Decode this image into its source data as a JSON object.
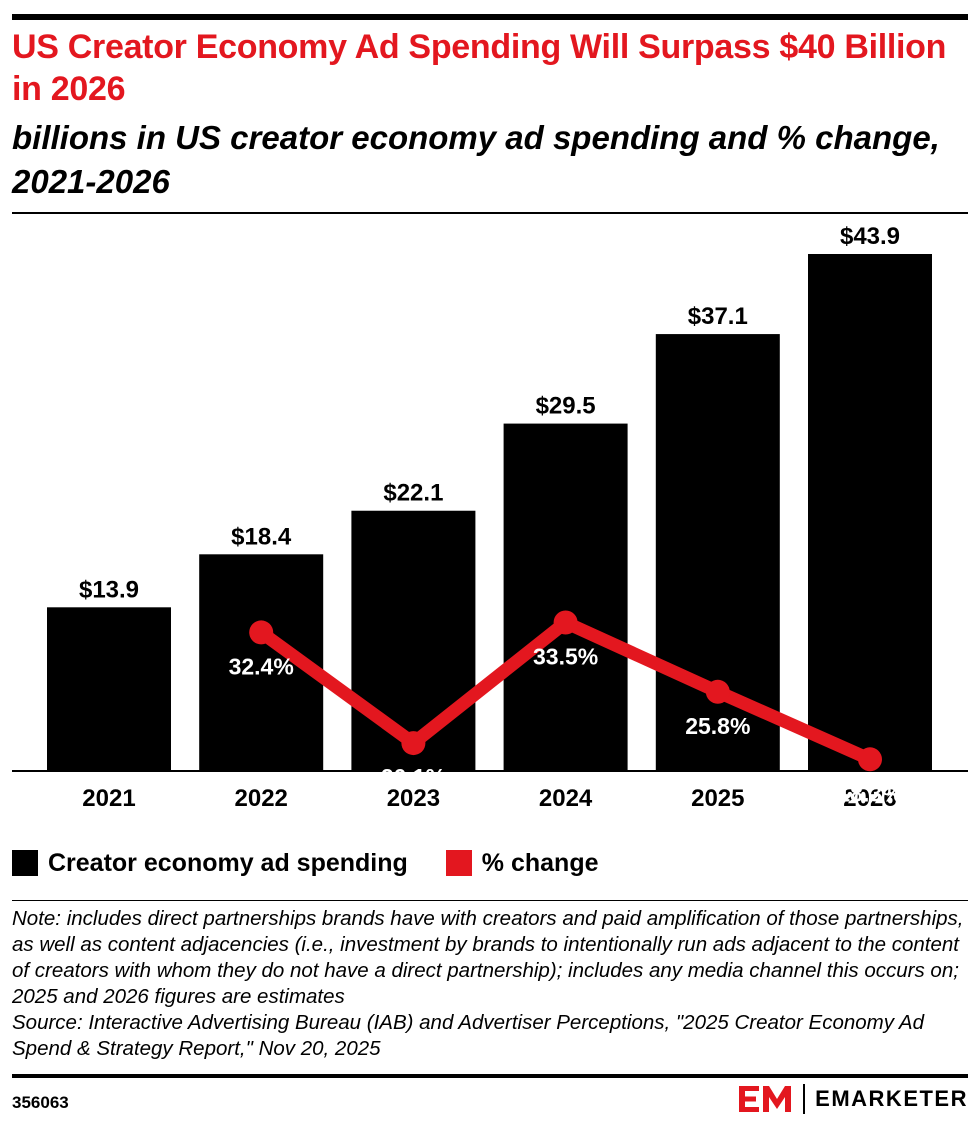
{
  "header": {
    "title": "US Creator Economy Ad Spending Will Surpass $40 Billion in 2026",
    "subtitle": "billions in US creator economy ad spending and % change, 2021-2026"
  },
  "chart_data": {
    "type": "bar",
    "categories": [
      "2021",
      "2022",
      "2023",
      "2024",
      "2025",
      "2026"
    ],
    "series": [
      {
        "name": "Creator economy ad spending",
        "type": "bar",
        "values": [
          13.9,
          18.4,
          22.1,
          29.5,
          37.1,
          43.9
        ],
        "labels": [
          "$13.9",
          "$18.4",
          "$22.1",
          "$29.5",
          "$37.1",
          "$43.9"
        ],
        "color": "#000000"
      },
      {
        "name": "% change",
        "type": "line",
        "values": [
          null,
          32.4,
          20.1,
          33.5,
          25.8,
          18.3
        ],
        "labels": [
          "",
          "32.4%",
          "20.1%",
          "33.5%",
          "25.8%",
          "18.3%"
        ],
        "color": "#e3171f"
      }
    ],
    "ylim": [
      0,
      45
    ],
    "secondary_ylim": [
      0,
      45
    ],
    "grid": false,
    "legend_position": "bottom-left"
  },
  "legend": [
    {
      "label": "Creator economy ad spending",
      "color": "#000000"
    },
    {
      "label": "% change",
      "color": "#e3171f"
    }
  ],
  "footer": {
    "note": "Note: includes direct partnerships brands have with creators and paid amplification of those partnerships, as well as content adjacencies (i.e., investment by brands to intentionally run ads adjacent to the content of creators with whom they do not have a direct partnership); includes any media channel this occurs on; 2025 and 2026 figures are estimates",
    "source": "Source: Interactive Advertising Bureau (IAB) and Advertiser Perceptions, \"2025 Creator Economy Ad Spend & Strategy Report,\" Nov 20, 2025",
    "chart_id": "356063",
    "brand": "EMARKETER",
    "brand_icon": "em-logo-icon"
  },
  "colors": {
    "accent": "#e3171f",
    "bar": "#000000",
    "text": "#000000"
  }
}
